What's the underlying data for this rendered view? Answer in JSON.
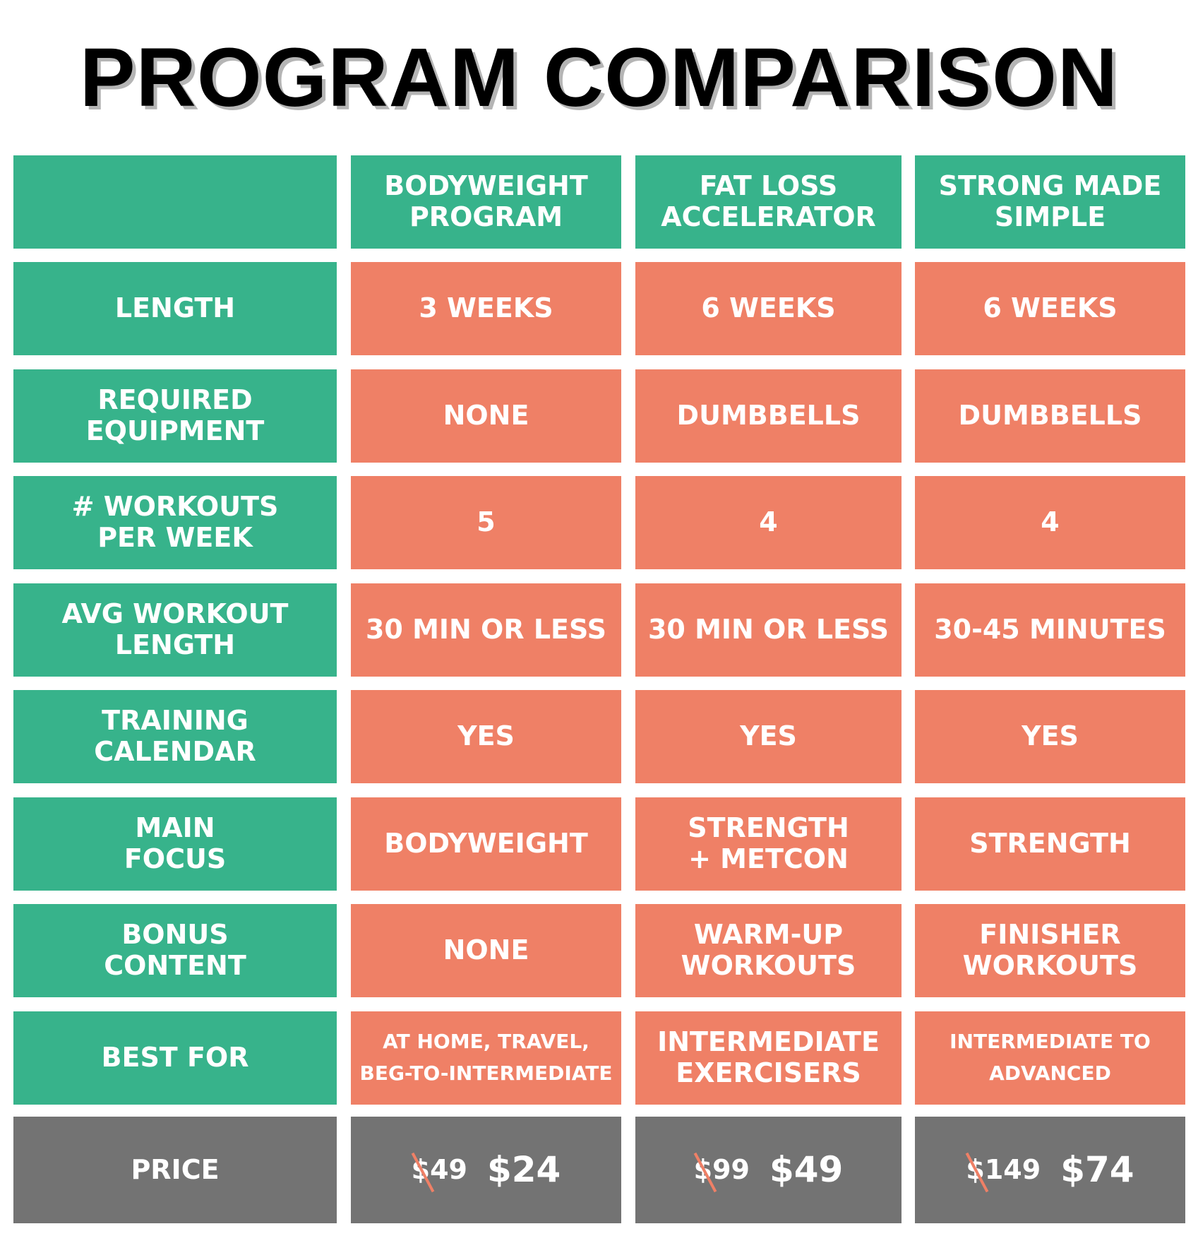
{
  "title": "PROGRAM COMPARISON",
  "colors": {
    "label_bg": "#37b38b",
    "value_bg": "#ef8066",
    "price_bg": "#737373",
    "strike": "#ef8066"
  },
  "programs": [
    "BODYWEIGHT\nPROGRAM",
    "FAT LOSS\nACCELERATOR",
    "STRONG MADE\nSIMPLE"
  ],
  "rows": [
    {
      "label": "LENGTH",
      "values": [
        "3 WEEKS",
        "6 WEEKS",
        "6 WEEKS"
      ]
    },
    {
      "label": "REQUIRED\nEQUIPMENT",
      "values": [
        "NONE",
        "DUMBBELLS",
        "DUMBBELLS"
      ]
    },
    {
      "label": "# WORKOUTS\nPER WEEK",
      "values": [
        "5",
        "4",
        "4"
      ]
    },
    {
      "label": "AVG WORKOUT\nLENGTH",
      "values": [
        "30 MIN OR LESS",
        "30 MIN OR LESS",
        "30-45 MINUTES"
      ]
    },
    {
      "label": "TRAINING\nCALENDAR",
      "values": [
        "YES",
        "YES",
        "YES"
      ]
    },
    {
      "label": "MAIN\nFOCUS",
      "values": [
        "BODYWEIGHT",
        "STRENGTH\n+ METCON",
        "STRENGTH"
      ]
    },
    {
      "label": "BONUS\nCONTENT",
      "values": [
        "NONE",
        "WARM-UP\nWORKOUTS",
        "FINISHER\nWORKOUTS"
      ]
    },
    {
      "label": "BEST FOR",
      "values": [
        "AT HOME, TRAVEL,\nBEG-TO-INTERMEDIATE",
        "INTERMEDIATE\nEXERCISERS",
        "INTERMEDIATE TO\nADVANCED"
      ]
    }
  ],
  "price": {
    "label": "PRICE",
    "old": [
      "$49",
      "$99",
      "$149"
    ],
    "new": [
      "$24",
      "$49",
      "$74"
    ]
  }
}
